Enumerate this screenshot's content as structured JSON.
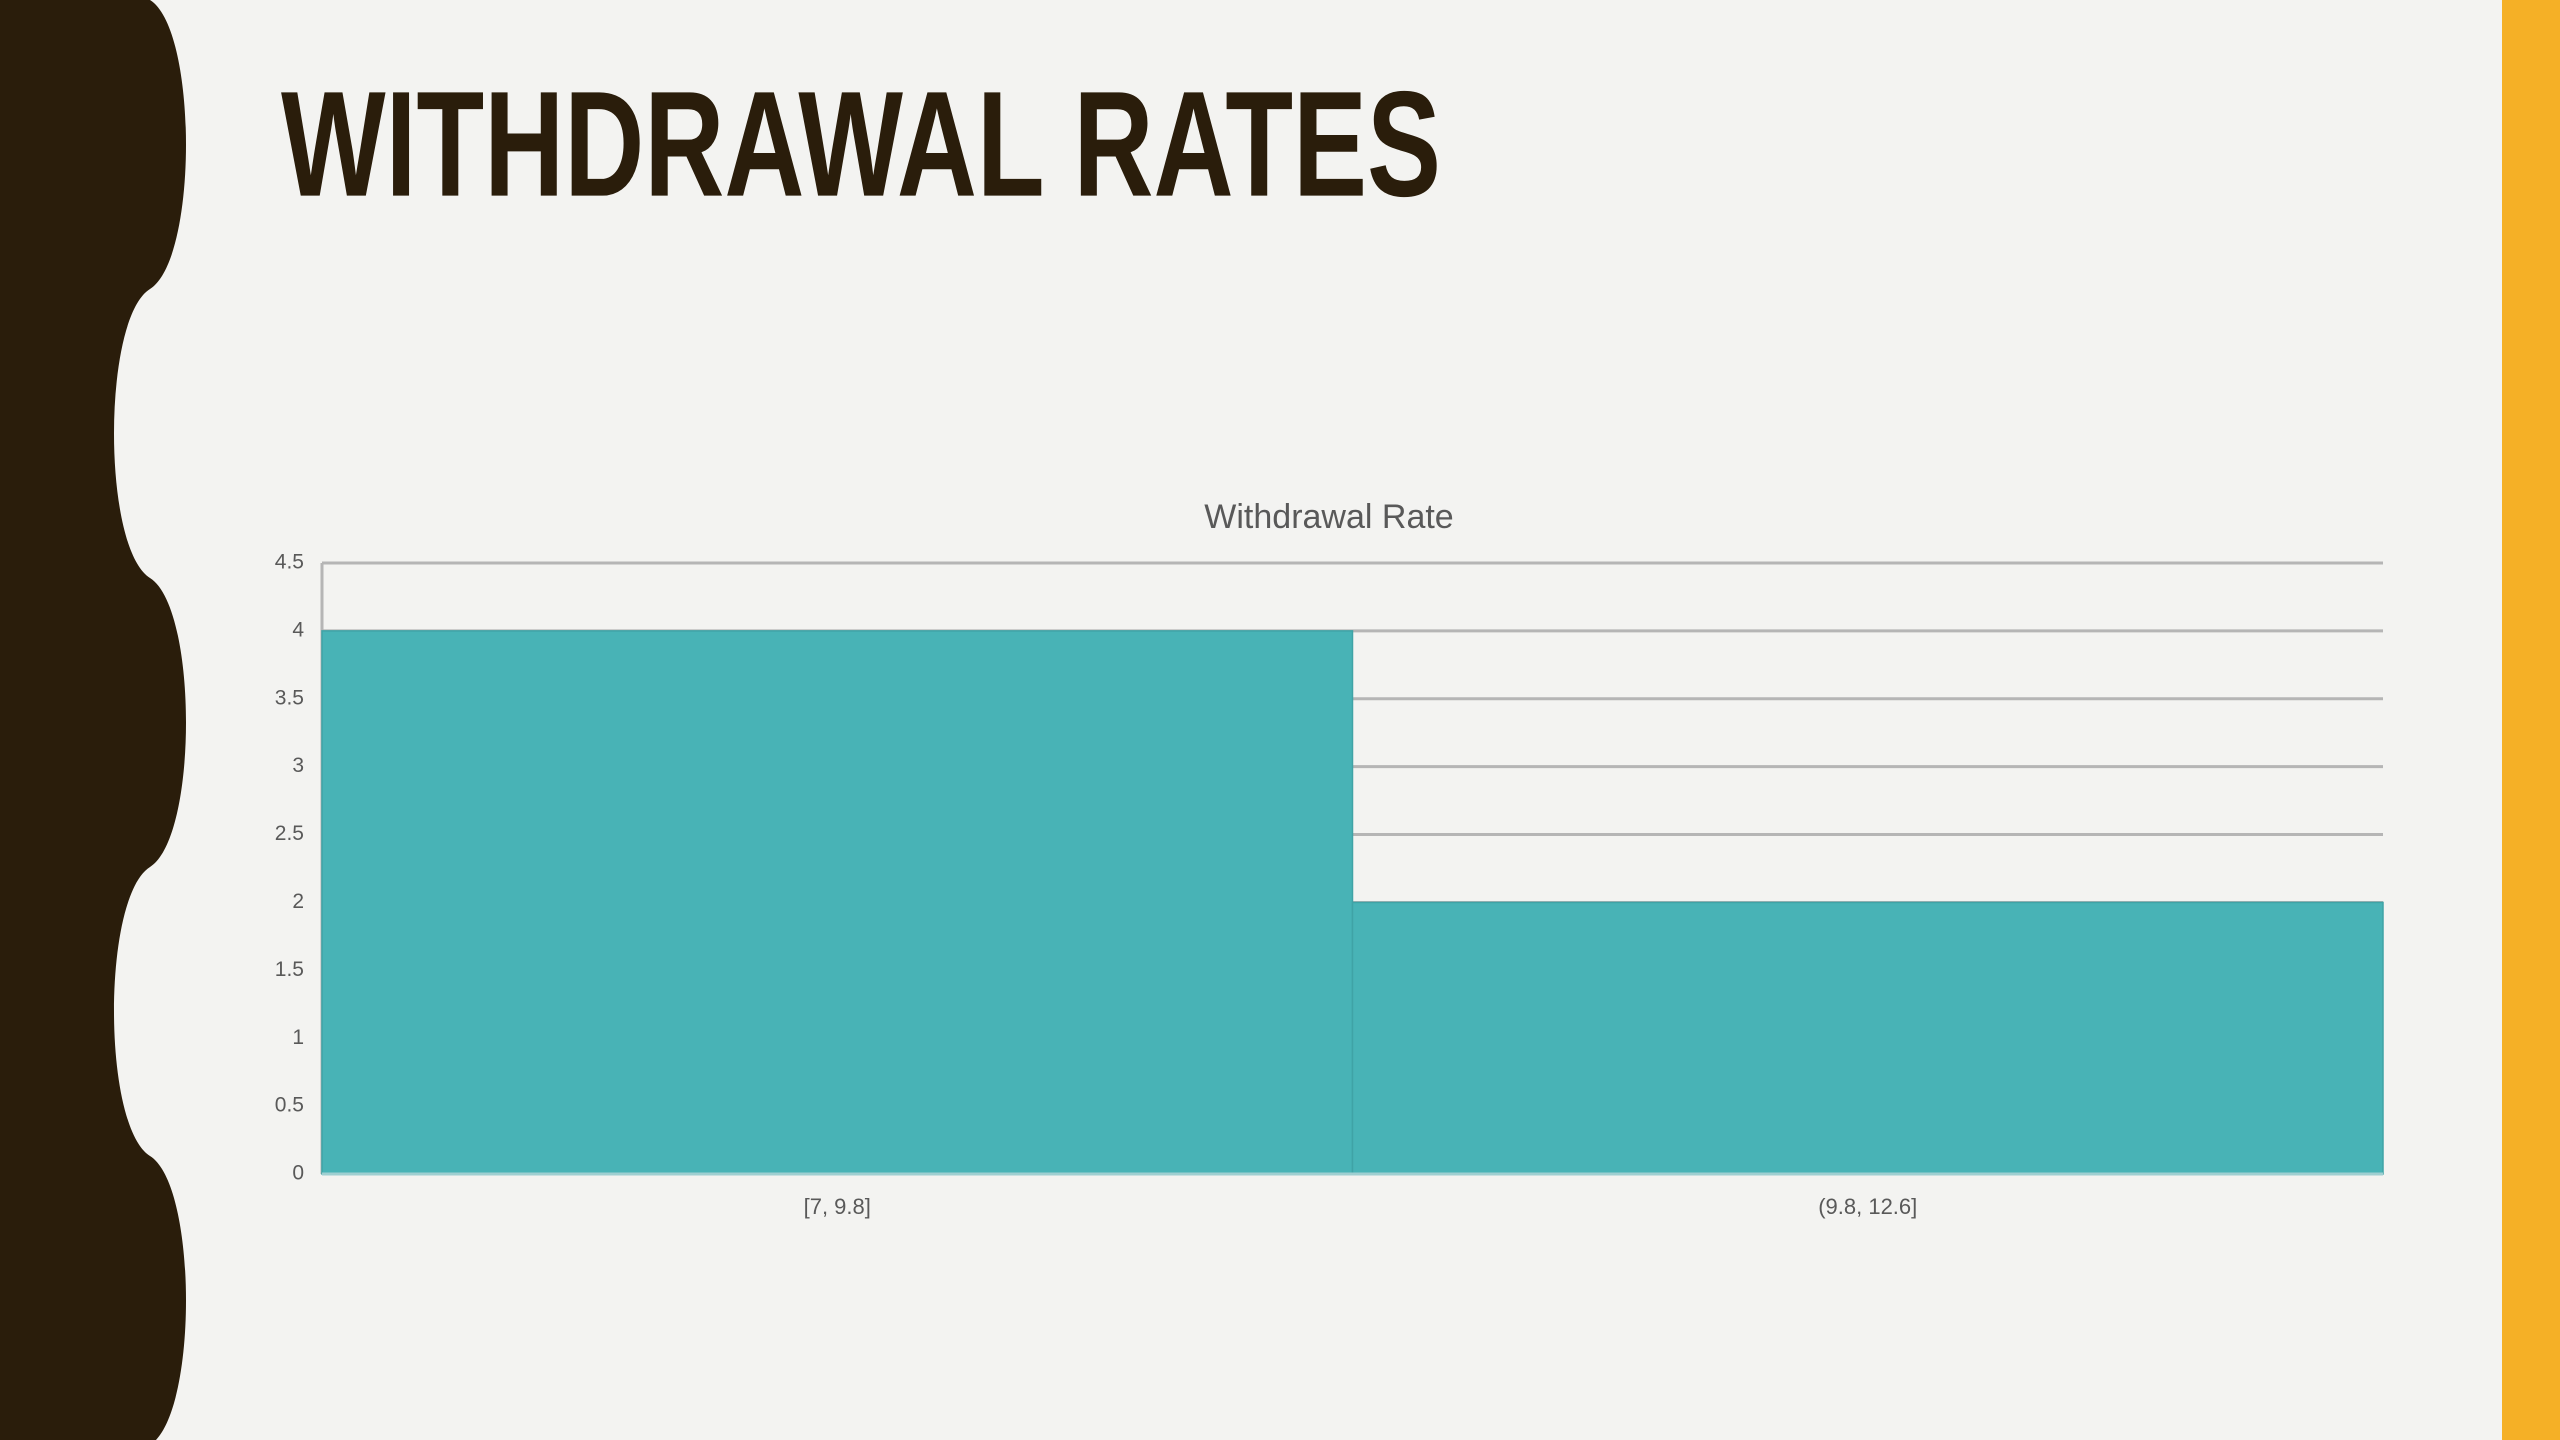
{
  "slide": {
    "title": "WITHDRAWAL RATES"
  },
  "chart_data": {
    "type": "bar",
    "title": "Withdrawal Rate",
    "categories": [
      "[7, 9.8]",
      "(9.8, 12.6]"
    ],
    "values": [
      4,
      2
    ],
    "color": "#48b3b6",
    "ylim": [
      0,
      4.5
    ],
    "yticks": [
      0,
      0.5,
      1,
      1.5,
      2,
      2.5,
      3,
      3.5,
      4,
      4.5
    ],
    "grid": true
  }
}
